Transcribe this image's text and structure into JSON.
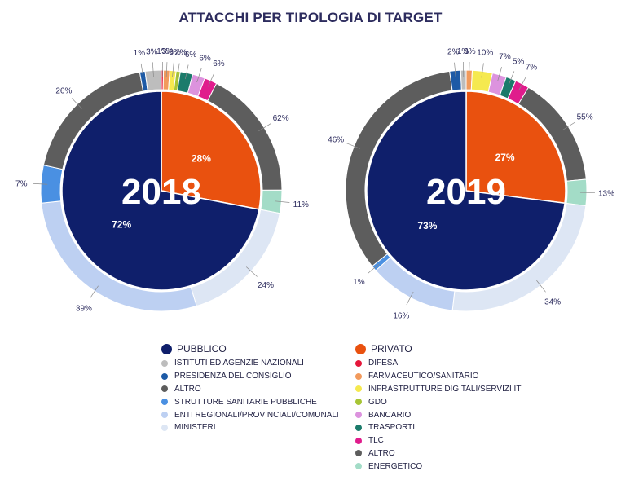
{
  "title": "ATTACCHI PER TIPOLOGIA DI TARGET",
  "colors": {
    "pubblico": "#0f1f6b",
    "privato": "#e9510f",
    "istituti": "#bdbdbd",
    "presidenza": "#1d5aa6",
    "altro": "#5d5d5d",
    "strutture": "#4a90e2",
    "enti": "#bdd0f2",
    "ministeri": "#dde6f4",
    "difesa": "#e5163a",
    "farmaceutico": "#f29a5c",
    "infrastrutture": "#f5e94f",
    "gdo": "#a7c535",
    "bancario": "#dc93de",
    "trasporti": "#1b7b6b",
    "tlc": "#e01c8c",
    "energetico": "#a3dcc7"
  },
  "legend": {
    "pubblico": {
      "label": "PUBBLICO",
      "color_key": "pubblico",
      "items": [
        {
          "label": "ISTITUTI ED AGENZIE NAZIONALI",
          "color_key": "istituti"
        },
        {
          "label": "PRESIDENZA DEL CONSIGLIO",
          "color_key": "presidenza"
        },
        {
          "label": "ALTRO",
          "color_key": "altro"
        },
        {
          "label": "STRUTTURE SANITARIE PUBBLICHE",
          "color_key": "strutture"
        },
        {
          "label": "ENTI REGIONALI/PROVINCIALI/COMUNALI",
          "color_key": "enti"
        },
        {
          "label": "MINISTERI",
          "color_key": "ministeri"
        }
      ]
    },
    "privato": {
      "label": "PRIVATO",
      "color_key": "privato",
      "items": [
        {
          "label": "DIFESA",
          "color_key": "difesa"
        },
        {
          "label": "FARMACEUTICO/SANITARIO",
          "color_key": "farmaceutico"
        },
        {
          "label": "INFRASTRUTTURE DIGITALI/SERVIZI IT",
          "color_key": "infrastrutture"
        },
        {
          "label": "GDO",
          "color_key": "gdo"
        },
        {
          "label": "BANCARIO",
          "color_key": "bancario"
        },
        {
          "label": "TRASPORTI",
          "color_key": "trasporti"
        },
        {
          "label": "TLC",
          "color_key": "tlc"
        },
        {
          "label": "ALTRO",
          "color_key": "altro"
        },
        {
          "label": "ENERGETICO",
          "color_key": "energetico"
        }
      ]
    }
  },
  "chart_data": [
    {
      "type": "pie",
      "year": "2018",
      "inner": [
        {
          "name": "PRIVATO",
          "value": 28,
          "label": "28%",
          "color_key": "privato"
        },
        {
          "name": "PUBBLICO",
          "value": 72,
          "label": "72%",
          "color_key": "pubblico"
        }
      ],
      "outer_private": [
        {
          "name": "DIFESA",
          "value": 1,
          "label": "1%",
          "color_key": "difesa"
        },
        {
          "name": "FARMACEUTICO/SANITARIO",
          "value": 3,
          "label": "3%",
          "color_key": "farmaceutico"
        },
        {
          "name": "INFRASTRUTTURE DIGITALI/SERVIZI IT",
          "value": 3,
          "label": "3%",
          "color_key": "infrastrutture"
        },
        {
          "name": "GDO",
          "value": 2,
          "label": "2%",
          "color_key": "gdo"
        },
        {
          "name": "TRASPORTI",
          "value": 6,
          "label": "6%",
          "color_key": "trasporti"
        },
        {
          "name": "BANCARIO",
          "value": 6,
          "label": "6%",
          "color_key": "bancario"
        },
        {
          "name": "TLC",
          "value": 6,
          "label": "6%",
          "color_key": "tlc"
        },
        {
          "name": "ALTRO",
          "value": 62,
          "label": "62%",
          "color_key": "altro"
        },
        {
          "name": "ENERGETICO",
          "value": 11,
          "label": "11%",
          "color_key": "energetico"
        }
      ],
      "outer_public": [
        {
          "name": "MINISTERI",
          "value": 24,
          "label": "24%",
          "color_key": "ministeri"
        },
        {
          "name": "ENTI REGIONALI/PROVINCIALI/COMUNALI",
          "value": 39,
          "label": "39%",
          "color_key": "enti"
        },
        {
          "name": "STRUTTURE SANITARIE PUBBLICHE",
          "value": 7,
          "label": "7%",
          "color_key": "strutture"
        },
        {
          "name": "ALTRO",
          "value": 26,
          "label": "26%",
          "color_key": "altro"
        },
        {
          "name": "PRESIDENZA DEL CONSIGLIO",
          "value": 1,
          "label": "1%",
          "color_key": "presidenza"
        },
        {
          "name": "ISTITUTI ED AGENZIE NAZIONALI",
          "value": 3,
          "label": "3%",
          "color_key": "istituti"
        }
      ]
    },
    {
      "type": "pie",
      "year": "2019",
      "inner": [
        {
          "name": "PRIVATO",
          "value": 27,
          "label": "27%",
          "color_key": "privato"
        },
        {
          "name": "PUBBLICO",
          "value": 73,
          "label": "73%",
          "color_key": "pubblico"
        }
      ],
      "outer_private": [
        {
          "name": "FARMACEUTICO/SANITARIO",
          "value": 3,
          "label": "3%",
          "color_key": "farmaceutico"
        },
        {
          "name": "INFRASTRUTTURE DIGITALI/SERVIZI IT",
          "value": 10,
          "label": "10%",
          "color_key": "infrastrutture"
        },
        {
          "name": "BANCARIO",
          "value": 7,
          "label": "7%",
          "color_key": "bancario"
        },
        {
          "name": "TRASPORTI",
          "value": 5,
          "label": "5%",
          "color_key": "trasporti"
        },
        {
          "name": "TLC",
          "value": 7,
          "label": "7%",
          "color_key": "tlc"
        },
        {
          "name": "ALTRO",
          "value": 55,
          "label": "55%",
          "color_key": "altro"
        },
        {
          "name": "ENERGETICO",
          "value": 13,
          "label": "13%",
          "color_key": "energetico"
        }
      ],
      "outer_public": [
        {
          "name": "MINISTERI",
          "value": 34,
          "label": "34%",
          "color_key": "ministeri"
        },
        {
          "name": "ENTI REGIONALI/PROVINCIALI/COMUNALI",
          "value": 16,
          "label": "16%",
          "color_key": "enti"
        },
        {
          "name": "STRUTTURE SANITARIE PUBBLICHE",
          "value": 1,
          "label": "1%",
          "color_key": "strutture"
        },
        {
          "name": "ALTRO",
          "value": 46,
          "label": "46%",
          "color_key": "altro"
        },
        {
          "name": "PRESIDENZA DEL CONSIGLIO",
          "value": 2,
          "label": "2%",
          "color_key": "presidenza"
        },
        {
          "name": "ISTITUTI ED AGENZIE NAZIONALI",
          "value": 1,
          "label": "1%",
          "color_key": "istituti"
        }
      ]
    }
  ]
}
